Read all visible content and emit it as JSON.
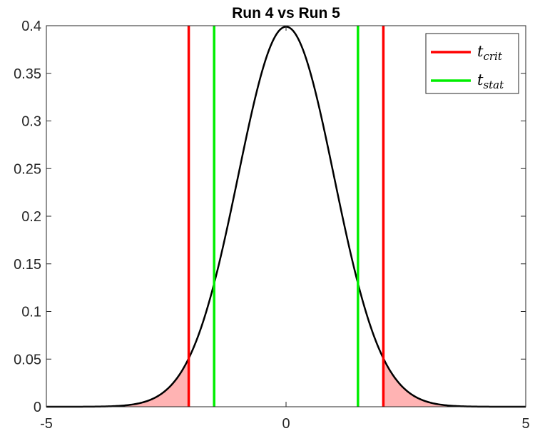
{
  "chart_data": {
    "type": "line",
    "title": "Run 4  vs  Run 5",
    "xlabel": "",
    "ylabel": "",
    "xlim": [
      -5,
      5
    ],
    "ylim": [
      0,
      0.4
    ],
    "x_ticks": [
      "-5",
      "0",
      "5"
    ],
    "y_ticks": [
      "0",
      "0.05",
      "0.1",
      "0.15",
      "0.2",
      "0.25",
      "0.3",
      "0.35",
      "0.4"
    ],
    "grid": false,
    "legend_position": "top-right",
    "distribution": "standard normal pdf",
    "series": [
      {
        "name": "",
        "color": "#000000",
        "kind": "pdf-curve"
      },
      {
        "name": "t_crit",
        "legend_main": "t",
        "legend_sub": "crit",
        "color": "#ff0000",
        "x": [
          -2.03,
          2.03
        ]
      },
      {
        "name": "t_stat",
        "legend_main": "t",
        "legend_sub": "stat",
        "color": "#00ee00",
        "x": [
          -1.5,
          1.5
        ]
      }
    ],
    "shaded_tails": {
      "color": "#ffb3b3",
      "left_upper": -2.03,
      "right_lower": 2.03
    }
  }
}
